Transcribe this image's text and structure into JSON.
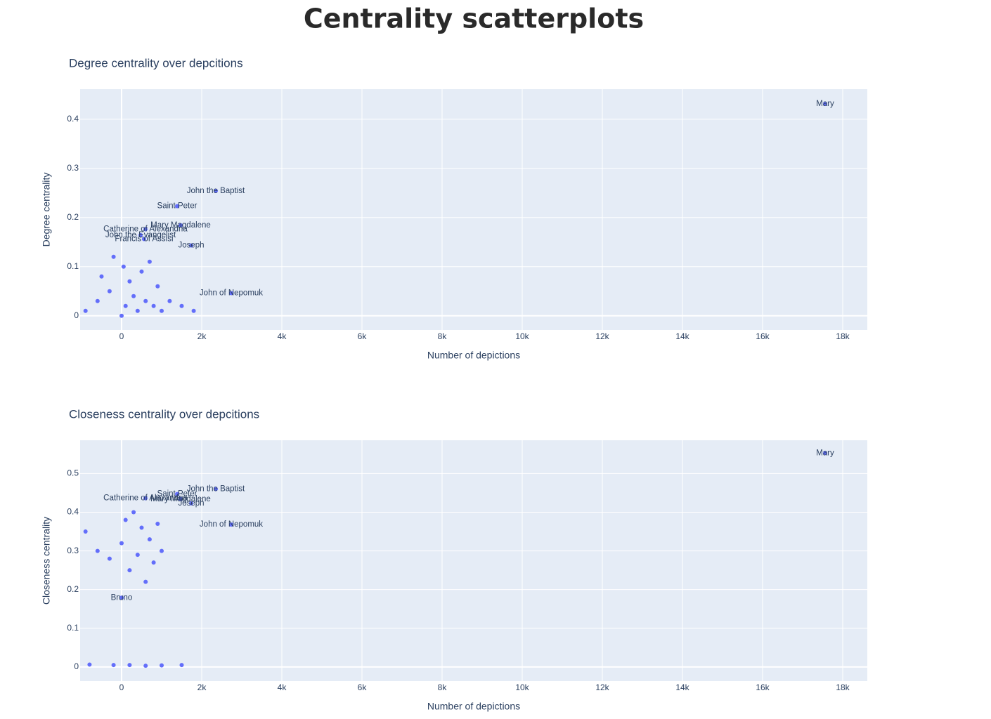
{
  "title": "Centrality scatterplots",
  "chart_data": [
    {
      "type": "scatter",
      "title": "Degree centrality over depcitions",
      "x_label": "Number of depictions",
      "y_label": "Degree centrality",
      "color": "#636efa",
      "xlim": [
        -1035,
        18614
      ],
      "ylim": [
        -0.029,
        0.461
      ],
      "xticks": [
        0,
        {
          "value": 2000,
          "label": "2k"
        },
        {
          "value": 4000,
          "label": "4k"
        },
        {
          "value": 6000,
          "label": "6k"
        },
        {
          "value": 8000,
          "label": "8k"
        },
        {
          "value": 10000,
          "label": "10k"
        },
        {
          "value": 12000,
          "label": "12k"
        },
        {
          "value": 14000,
          "label": "14k"
        },
        {
          "value": 16000,
          "label": "16k"
        },
        {
          "value": 18000,
          "label": "18k"
        }
      ],
      "yticks": [
        0,
        0.1,
        0.2,
        0.3,
        0.4
      ],
      "x": [
        17561,
        2351,
        1386,
        1474,
        1737,
        2737,
        596,
        474,
        561,
        -900,
        -600,
        -300,
        0,
        100,
        200,
        300,
        400,
        500,
        600,
        700,
        800,
        900,
        1000,
        -200,
        -500,
        1200,
        1500,
        1800,
        50
      ],
      "values": [
        0.431,
        0.254,
        0.223,
        0.184,
        0.143,
        0.046,
        0.176,
        0.164,
        0.156,
        0.01,
        0.03,
        0.05,
        0.0,
        0.02,
        0.07,
        0.04,
        0.01,
        0.09,
        0.03,
        0.11,
        0.02,
        0.06,
        0.01,
        0.12,
        0.08,
        0.03,
        0.02,
        0.01,
        0.1
      ],
      "labels": [
        "Mary",
        "John the Baptist",
        "Saint Peter",
        "Mary Magdalene",
        "Joseph",
        "John of Nepomuk",
        "Catherine of Alexandria",
        "John the Evangelist",
        "Francis of Assisi",
        null,
        null,
        null,
        null,
        null,
        null,
        null,
        null,
        null,
        null,
        null,
        null,
        null,
        null,
        null,
        null,
        null,
        null,
        null,
        null
      ]
    },
    {
      "type": "scatter",
      "title": "Closeness centrality over depcitions",
      "x_label": "Number of depictions",
      "y_label": "Closeness centrality",
      "color": "#636efa",
      "xlim": [
        -1035,
        18614
      ],
      "ylim": [
        -0.0366,
        0.5861
      ],
      "xticks": [
        0,
        {
          "value": 2000,
          "label": "2k"
        },
        {
          "value": 4000,
          "label": "4k"
        },
        {
          "value": 6000,
          "label": "6k"
        },
        {
          "value": 8000,
          "label": "8k"
        },
        {
          "value": 10000,
          "label": "10k"
        },
        {
          "value": 12000,
          "label": "12k"
        },
        {
          "value": 14000,
          "label": "14k"
        },
        {
          "value": 16000,
          "label": "16k"
        },
        {
          "value": 18000,
          "label": "18k"
        }
      ],
      "yticks": [
        0,
        0.1,
        0.2,
        0.3,
        0.4,
        0.5
      ],
      "x": [
        17561,
        2351,
        1386,
        1474,
        1737,
        2737,
        0,
        596,
        -900,
        -600,
        -300,
        0,
        100,
        200,
        300,
        400,
        500,
        600,
        700,
        800,
        900,
        1000,
        -200,
        200,
        600,
        1000,
        1500,
        -800
      ],
      "values": [
        0.553,
        0.46,
        0.447,
        0.434,
        0.423,
        0.368,
        0.179,
        0.436,
        0.35,
        0.3,
        0.28,
        0.32,
        0.38,
        0.25,
        0.4,
        0.29,
        0.36,
        0.22,
        0.33,
        0.27,
        0.37,
        0.3,
        0.005,
        0.005,
        0.003,
        0.004,
        0.005,
        0.006
      ],
      "labels": [
        "Mary",
        "John the Baptist",
        "Saint Peter",
        "Mary Magdalene",
        "Joseph",
        "John of Nepomuk",
        "Bruno",
        "Catherine of Alexandria",
        null,
        null,
        null,
        null,
        null,
        null,
        null,
        null,
        null,
        null,
        null,
        null,
        null,
        null,
        null,
        null,
        null,
        null,
        null,
        null
      ]
    }
  ]
}
